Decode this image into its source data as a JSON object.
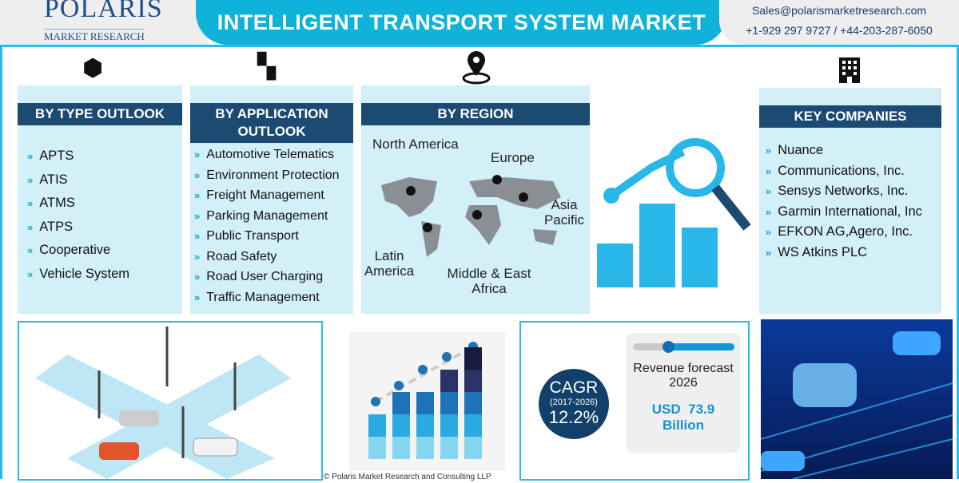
{
  "header": {
    "brand": "POLARIS",
    "brand_sub": "MARKET RESEARCH",
    "title": "INTELLIGENT TRANSPORT SYSTEM MARKET",
    "email": "Sales@polarismarketresearch.com",
    "phone": "+1-929 297 9727 / +44-203-287-6050"
  },
  "type_outlook": {
    "title": "BY TYPE OUTLOOK",
    "icon": "cube-network-icon",
    "items": [
      "APTS",
      "ATIS",
      "ATMS",
      "ATPS",
      "Cooperative",
      "Vehicle System"
    ]
  },
  "application_outlook": {
    "title_line1": "BY APPLICATION",
    "title_line2": "OUTLOOK",
    "icon": "apps-icon",
    "items": [
      "Automotive Telematics",
      "Environment Protection",
      "Freight Management",
      "Parking Management",
      "Public Transport",
      "Road Safety",
      "Road User Charging",
      "Traffic Management"
    ]
  },
  "region": {
    "title": "BY REGION",
    "icon": "map-pin-icon",
    "labels": {
      "north_america": "North America",
      "europe": "Europe",
      "asia_pacific": "Asia Pacific",
      "latin_america": "Latin America",
      "mea": "Middle & East Africa"
    }
  },
  "key_companies": {
    "title": "KEY COMPANIES",
    "icon": "building-icon",
    "items": [
      "Nuance",
      "Communications, Inc.",
      "Sensys Networks, Inc.",
      "Garmin International, Inc",
      "EFKON AG,Agero, Inc.",
      "WS Atkins PLC"
    ]
  },
  "stats": {
    "cagr_label": "CAGR",
    "cagr_period": "(2017-2026)",
    "cagr_value": "12.2%",
    "forecast_label": "Revenue forecast 2026",
    "forecast_value": "USD  73.9 Billion",
    "slider_fraction": 0.35
  },
  "footer": {
    "copyright": "© Polaris Market Research and Consulting LLP"
  },
  "colors": {
    "cyan": "#0fb3d9",
    "navy": "#1b4a72",
    "panel": "#d3eff8"
  }
}
